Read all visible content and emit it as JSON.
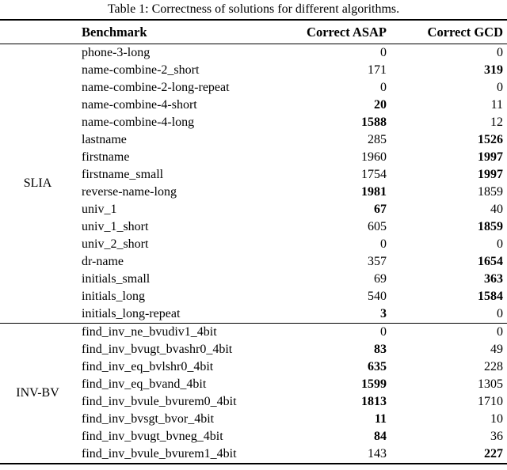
{
  "title": "Table 1: Correctness of solutions for different algorithms.",
  "header": {
    "benchmark": "Benchmark",
    "asap": "Correct ASAP",
    "gcd": "Correct GCD"
  },
  "groups": [
    {
      "label": "SLIA",
      "rows": [
        {
          "benchmark": "phone-3-long",
          "asap": "0",
          "asap_bold": false,
          "gcd": "0",
          "gcd_bold": false
        },
        {
          "benchmark": "name-combine-2_short",
          "asap": "171",
          "asap_bold": false,
          "gcd": "319",
          "gcd_bold": true
        },
        {
          "benchmark": "name-combine-2-long-repeat",
          "asap": "0",
          "asap_bold": false,
          "gcd": "0",
          "gcd_bold": false
        },
        {
          "benchmark": "name-combine-4-short",
          "asap": "20",
          "asap_bold": true,
          "gcd": "11",
          "gcd_bold": false
        },
        {
          "benchmark": "name-combine-4-long",
          "asap": "1588",
          "asap_bold": true,
          "gcd": "12",
          "gcd_bold": false
        },
        {
          "benchmark": "lastname",
          "asap": "285",
          "asap_bold": false,
          "gcd": "1526",
          "gcd_bold": true
        },
        {
          "benchmark": "firstname",
          "asap": "1960",
          "asap_bold": false,
          "gcd": "1997",
          "gcd_bold": true
        },
        {
          "benchmark": "firstname_small",
          "asap": "1754",
          "asap_bold": false,
          "gcd": "1997",
          "gcd_bold": true
        },
        {
          "benchmark": "reverse-name-long",
          "asap": "1981",
          "asap_bold": true,
          "gcd": "1859",
          "gcd_bold": false
        },
        {
          "benchmark": "univ_1",
          "asap": "67",
          "asap_bold": true,
          "gcd": "40",
          "gcd_bold": false
        },
        {
          "benchmark": "univ_1_short",
          "asap": "605",
          "asap_bold": false,
          "gcd": "1859",
          "gcd_bold": true
        },
        {
          "benchmark": "univ_2_short",
          "asap": "0",
          "asap_bold": false,
          "gcd": "0",
          "gcd_bold": false
        },
        {
          "benchmark": "dr-name",
          "asap": "357",
          "asap_bold": false,
          "gcd": "1654",
          "gcd_bold": true
        },
        {
          "benchmark": "initials_small",
          "asap": "69",
          "asap_bold": false,
          "gcd": "363",
          "gcd_bold": true
        },
        {
          "benchmark": "initials_long",
          "asap": "540",
          "asap_bold": false,
          "gcd": "1584",
          "gcd_bold": true
        },
        {
          "benchmark": "initials_long-repeat",
          "asap": "3",
          "asap_bold": true,
          "gcd": "0",
          "gcd_bold": false
        }
      ]
    },
    {
      "label": "INV-BV",
      "rows": [
        {
          "benchmark": "find_inv_ne_bvudiv1_4bit",
          "asap": "0",
          "asap_bold": false,
          "gcd": "0",
          "gcd_bold": false
        },
        {
          "benchmark": "find_inv_bvugt_bvashr0_4bit",
          "asap": "83",
          "asap_bold": true,
          "gcd": "49",
          "gcd_bold": false
        },
        {
          "benchmark": "find_inv_eq_bvlshr0_4bit",
          "asap": "635",
          "asap_bold": true,
          "gcd": "228",
          "gcd_bold": false
        },
        {
          "benchmark": "find_inv_eq_bvand_4bit",
          "asap": "1599",
          "asap_bold": true,
          "gcd": "1305",
          "gcd_bold": false
        },
        {
          "benchmark": "find_inv_bvule_bvurem0_4bit",
          "asap": "1813",
          "asap_bold": true,
          "gcd": "1710",
          "gcd_bold": false
        },
        {
          "benchmark": "find_inv_bvsgt_bvor_4bit",
          "asap": "11",
          "asap_bold": true,
          "gcd": "10",
          "gcd_bold": false
        },
        {
          "benchmark": "find_inv_bvugt_bvneg_4bit",
          "asap": "84",
          "asap_bold": true,
          "gcd": "36",
          "gcd_bold": false
        },
        {
          "benchmark": "find_inv_bvule_bvurem1_4bit",
          "asap": "143",
          "asap_bold": false,
          "gcd": "227",
          "gcd_bold": true
        }
      ]
    }
  ]
}
